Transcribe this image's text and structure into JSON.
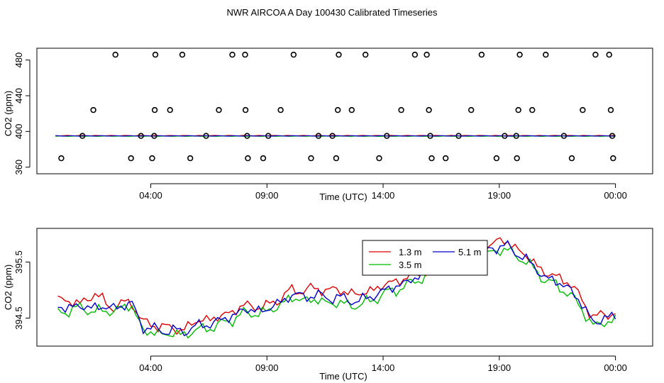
{
  "title": "NWR AIRCOA A  Day 100430  Calibrated Timeseries",
  "colors": {
    "s13": "#dd0000",
    "s35": "#00bb00",
    "s51": "#0000cc",
    "axis": "#000000"
  },
  "chart_data": [
    {
      "type": "scatter",
      "name": "top-panel",
      "xlabel": "Time (UTC)",
      "ylabel": "CO2 (ppm)",
      "xlim": [
        -1.9,
        24.6
      ],
      "ylim": [
        352.6,
        493.2
      ],
      "xticks": [
        {
          "v": 3.0,
          "label": "04:00"
        },
        {
          "v": 8.0,
          "label": "09:00"
        },
        {
          "v": 13.0,
          "label": "14:00"
        },
        {
          "v": 18.0,
          "label": "19:00"
        },
        {
          "v": 23.0,
          "label": "00:00"
        }
      ],
      "yticks": [
        {
          "v": 360,
          "label": "360"
        },
        {
          "v": 400,
          "label": "400"
        },
        {
          "v": 440,
          "label": "440"
        },
        {
          "v": 480,
          "label": "480"
        }
      ],
      "flat_series": [
        {
          "name": "1.3 m",
          "value": 395.3
        },
        {
          "name": "3.5 m",
          "value": 394.7
        },
        {
          "name": "5.1 m",
          "value": 395.0
        }
      ],
      "points": [
        [
          -0.85,
          370
        ],
        [
          0.06,
          395
        ],
        [
          0.53,
          424
        ],
        [
          1.48,
          486
        ],
        [
          2.15,
          370
        ],
        [
          2.58,
          395
        ],
        [
          3.06,
          370
        ],
        [
          3.15,
          395
        ],
        [
          3.17,
          424
        ],
        [
          3.2,
          486
        ],
        [
          3.83,
          424
        ],
        [
          4.36,
          486
        ],
        [
          4.7,
          370
        ],
        [
          5.38,
          395
        ],
        [
          5.93,
          424
        ],
        [
          6.51,
          486
        ],
        [
          7.06,
          486
        ],
        [
          7.08,
          424
        ],
        [
          7.15,
          395
        ],
        [
          7.18,
          370
        ],
        [
          7.84,
          370
        ],
        [
          8.06,
          395
        ],
        [
          8.59,
          424
        ],
        [
          9.15,
          486
        ],
        [
          9.9,
          370
        ],
        [
          10.22,
          395
        ],
        [
          10.82,
          395
        ],
        [
          10.98,
          370
        ],
        [
          11.05,
          424
        ],
        [
          11.09,
          486
        ],
        [
          11.65,
          424
        ],
        [
          12.24,
          486
        ],
        [
          12.83,
          370
        ],
        [
          13.16,
          395
        ],
        [
          13.78,
          424
        ],
        [
          14.37,
          486
        ],
        [
          14.88,
          486
        ],
        [
          14.97,
          424
        ],
        [
          15.03,
          395
        ],
        [
          15.09,
          370
        ],
        [
          15.69,
          370
        ],
        [
          16.25,
          395
        ],
        [
          16.79,
          424
        ],
        [
          17.24,
          486
        ],
        [
          17.88,
          370
        ],
        [
          18.23,
          395
        ],
        [
          18.73,
          395
        ],
        [
          18.76,
          370
        ],
        [
          18.82,
          424
        ],
        [
          18.88,
          486
        ],
        [
          19.42,
          424
        ],
        [
          20.0,
          486
        ],
        [
          20.78,
          395
        ],
        [
          21.12,
          370
        ],
        [
          21.59,
          424
        ],
        [
          22.14,
          486
        ],
        [
          22.73,
          486
        ],
        [
          22.8,
          424
        ],
        [
          22.86,
          395
        ],
        [
          22.9,
          370
        ]
      ]
    },
    {
      "type": "line",
      "name": "bottom-panel",
      "xlabel": "Time (UTC)",
      "ylabel": "CO2 (ppm)",
      "xlim": [
        -1.9,
        24.6
      ],
      "ylim": [
        394.0,
        396.1
      ],
      "xticks": [
        {
          "v": 3.0,
          "label": "04:00"
        },
        {
          "v": 8.0,
          "label": "09:00"
        },
        {
          "v": 13.0,
          "label": "14:00"
        },
        {
          "v": 18.0,
          "label": "19:00"
        },
        {
          "v": 23.0,
          "label": "00:00"
        }
      ],
      "yticks": [
        {
          "v": 394.5,
          "label": "394.5"
        },
        {
          "v": 395.5,
          "label": "395.5"
        }
      ],
      "legend": {
        "entries": [
          {
            "name": "1.3 m",
            "color": "s13"
          },
          {
            "name": "3.5 m",
            "color": "s35"
          },
          {
            "name": "5.1 m",
            "color": "s51"
          }
        ]
      },
      "series": [
        {
          "name": "1.3 m",
          "color": "s13",
          "knots": [
            [
              -1.0,
              394.85
            ],
            [
              0.0,
              394.75
            ],
            [
              0.6,
              394.95
            ],
            [
              1.2,
              394.7
            ],
            [
              2.2,
              394.78
            ],
            [
              2.7,
              394.4
            ],
            [
              3.6,
              394.35
            ],
            [
              4.3,
              394.28
            ],
            [
              5.0,
              394.45
            ],
            [
              6.0,
              394.52
            ],
            [
              7.0,
              394.72
            ],
            [
              8.0,
              394.7
            ],
            [
              9.0,
              394.98
            ],
            [
              10.0,
              395.02
            ],
            [
              11.0,
              395.0
            ],
            [
              12.0,
              394.92
            ],
            [
              13.0,
              395.08
            ],
            [
              14.0,
              395.22
            ],
            [
              15.0,
              395.38
            ],
            [
              16.0,
              395.53
            ],
            [
              17.0,
              395.68
            ],
            [
              17.8,
              395.86
            ],
            [
              18.3,
              395.88
            ],
            [
              19.0,
              395.66
            ],
            [
              20.0,
              395.3
            ],
            [
              21.0,
              395.15
            ],
            [
              22.1,
              394.5
            ],
            [
              23.0,
              394.62
            ]
          ]
        },
        {
          "name": "3.5 m",
          "color": "s35",
          "knots": [
            [
              -1.0,
              394.6
            ],
            [
              0.0,
              394.68
            ],
            [
              0.6,
              394.62
            ],
            [
              1.2,
              394.62
            ],
            [
              2.2,
              394.72
            ],
            [
              2.7,
              394.25
            ],
            [
              3.6,
              394.22
            ],
            [
              4.3,
              394.2
            ],
            [
              5.0,
              394.28
            ],
            [
              6.0,
              394.38
            ],
            [
              7.0,
              394.58
            ],
            [
              8.0,
              394.6
            ],
            [
              9.0,
              394.85
            ],
            [
              10.0,
              394.82
            ],
            [
              11.0,
              394.76
            ],
            [
              12.0,
              394.72
            ],
            [
              13.0,
              394.92
            ],
            [
              14.0,
              395.08
            ],
            [
              15.0,
              395.28
            ],
            [
              16.0,
              395.45
            ],
            [
              17.0,
              395.58
            ],
            [
              17.8,
              395.7
            ],
            [
              18.3,
              395.72
            ],
            [
              19.0,
              395.55
            ],
            [
              20.0,
              395.18
            ],
            [
              21.0,
              394.95
            ],
            [
              22.1,
              394.35
            ],
            [
              23.0,
              394.48
            ]
          ]
        },
        {
          "name": "5.1 m",
          "color": "s51",
          "knots": [
            [
              -1.0,
              394.7
            ],
            [
              0.0,
              394.7
            ],
            [
              0.6,
              394.7
            ],
            [
              1.2,
              394.68
            ],
            [
              2.2,
              394.75
            ],
            [
              2.7,
              394.32
            ],
            [
              3.6,
              394.28
            ],
            [
              4.3,
              394.26
            ],
            [
              5.0,
              394.35
            ],
            [
              6.0,
              394.45
            ],
            [
              7.0,
              394.64
            ],
            [
              8.0,
              394.64
            ],
            [
              9.0,
              394.9
            ],
            [
              10.0,
              394.9
            ],
            [
              11.0,
              394.86
            ],
            [
              12.0,
              394.8
            ],
            [
              13.0,
              394.98
            ],
            [
              14.0,
              395.14
            ],
            [
              15.0,
              395.32
            ],
            [
              16.0,
              395.48
            ],
            [
              17.0,
              395.6
            ],
            [
              17.8,
              395.78
            ],
            [
              18.3,
              395.78
            ],
            [
              19.0,
              395.6
            ],
            [
              20.0,
              395.22
            ],
            [
              21.0,
              395.05
            ],
            [
              22.1,
              394.42
            ],
            [
              23.0,
              394.55
            ]
          ]
        }
      ]
    }
  ]
}
